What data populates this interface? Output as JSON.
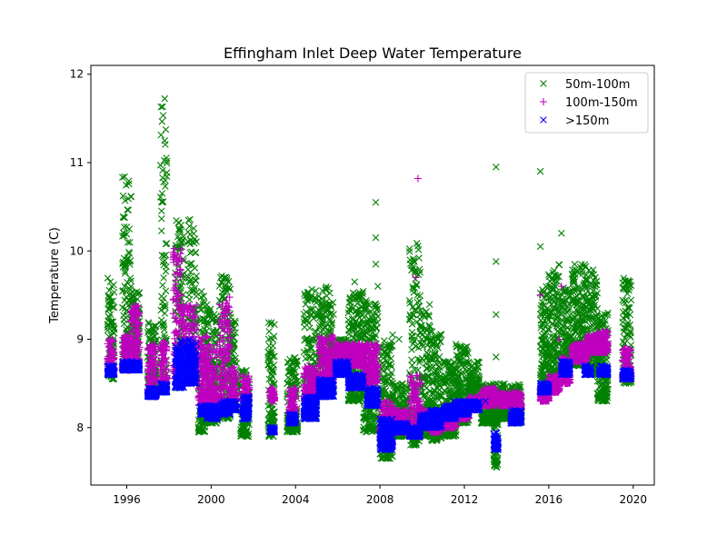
{
  "chart_data": {
    "type": "scatter",
    "title": "Effingham Inlet Deep Water Temperature",
    "xlabel": "",
    "ylabel": "Temperature (C)",
    "xlim": [
      1994.3,
      2021.0
    ],
    "ylim": [
      7.35,
      12.1
    ],
    "x_ticks": [
      1996,
      2000,
      2004,
      2008,
      2012,
      2016,
      2020
    ],
    "y_ticks": [
      8,
      9,
      10,
      11,
      12
    ],
    "legend_position": "top-right",
    "grid": false,
    "series": [
      {
        "name": "50m-100m",
        "marker": "x",
        "color": "#008000",
        "segments": [
          [
            1995.1,
            1995.4,
            8.55,
            9.7
          ],
          [
            1995.8,
            1996.2,
            8.65,
            10.85
          ],
          [
            1996.2,
            1996.6,
            8.7,
            9.55
          ],
          [
            1997.0,
            1997.4,
            8.35,
            9.2
          ],
          [
            1997.6,
            1997.9,
            8.45,
            11.85
          ],
          [
            1998.3,
            1998.7,
            8.45,
            10.35
          ],
          [
            1998.9,
            1999.3,
            8.5,
            10.45
          ],
          [
            1999.4,
            1999.7,
            7.95,
            9.6
          ],
          [
            1999.7,
            2000.3,
            8.05,
            9.4
          ],
          [
            2000.4,
            2000.9,
            8.1,
            9.8
          ],
          [
            2000.9,
            2001.2,
            8.2,
            9.3
          ],
          [
            2001.4,
            2001.8,
            7.9,
            8.65
          ],
          [
            2002.7,
            2003.0,
            7.9,
            9.2
          ],
          [
            2003.6,
            2004.1,
            7.95,
            8.8
          ],
          [
            2004.4,
            2005.0,
            8.1,
            9.6
          ],
          [
            2005.1,
            2005.8,
            8.4,
            9.6
          ],
          [
            2005.9,
            2006.5,
            8.6,
            9.0
          ],
          [
            2006.5,
            2007.2,
            8.3,
            9.55
          ],
          [
            2007.2,
            2007.9,
            7.95,
            9.45
          ],
          [
            2008.0,
            2008.6,
            7.65,
            9.0
          ],
          [
            2008.6,
            2009.3,
            7.9,
            8.5
          ],
          [
            2009.4,
            2009.9,
            7.8,
            10.1
          ],
          [
            2009.9,
            2010.4,
            7.9,
            9.4
          ],
          [
            2010.4,
            2010.9,
            7.85,
            9.1
          ],
          [
            2011.0,
            2011.6,
            7.9,
            8.75
          ],
          [
            2011.6,
            2012.2,
            8.05,
            8.95
          ],
          [
            2012.2,
            2012.7,
            8.2,
            8.75
          ],
          [
            2012.8,
            2013.5,
            8.05,
            8.5
          ],
          [
            2013.4,
            2013.6,
            7.55,
            8.4
          ],
          [
            2013.6,
            2014.1,
            8.1,
            8.5
          ],
          [
            2014.2,
            2014.7,
            8.05,
            8.5
          ],
          [
            2015.6,
            2016.0,
            8.4,
            9.6
          ],
          [
            2016.0,
            2016.5,
            8.6,
            9.85
          ],
          [
            2016.6,
            2017.0,
            8.65,
            9.6
          ],
          [
            2017.1,
            2017.8,
            8.7,
            9.85
          ],
          [
            2017.8,
            2018.3,
            8.6,
            9.8
          ],
          [
            2018.3,
            2018.8,
            8.3,
            9.3
          ],
          [
            2019.5,
            2019.9,
            8.5,
            9.7
          ]
        ],
        "outliers": [
          [
            2007.8,
            10.55
          ],
          [
            2007.8,
            10.15
          ],
          [
            2007.8,
            9.85
          ],
          [
            2007.9,
            9.6
          ],
          [
            2013.5,
            10.95
          ],
          [
            2013.5,
            9.88
          ],
          [
            2013.5,
            9.28
          ],
          [
            2013.5,
            8.8
          ],
          [
            2015.6,
            10.9
          ],
          [
            2015.6,
            10.05
          ],
          [
            2016.6,
            10.2
          ],
          [
            2006.8,
            9.65
          ],
          [
            2008.6,
            9.05
          ],
          [
            2008.9,
            9.0
          ]
        ]
      },
      {
        "name": "100m-150m",
        "marker": "+",
        "color": "#bf00bf",
        "segments": [
          [
            1995.1,
            1995.4,
            8.65,
            9.0
          ],
          [
            1995.8,
            1996.2,
            8.65,
            9.05
          ],
          [
            1996.2,
            1996.6,
            8.7,
            9.4
          ],
          [
            1997.0,
            1997.4,
            8.35,
            8.95
          ],
          [
            1997.6,
            1997.9,
            8.5,
            9.0
          ],
          [
            1998.2,
            1998.6,
            8.55,
            10.05
          ],
          [
            1998.6,
            1999.3,
            8.5,
            9.4
          ],
          [
            1999.4,
            1999.8,
            8.25,
            9.05
          ],
          [
            1999.8,
            2000.3,
            8.25,
            8.95
          ],
          [
            2000.4,
            2000.9,
            8.2,
            9.5
          ],
          [
            2000.9,
            2001.2,
            8.3,
            8.7
          ],
          [
            2001.5,
            2001.8,
            8.3,
            8.6
          ],
          [
            2002.8,
            2003.0,
            8.3,
            8.45
          ],
          [
            2003.7,
            2004.0,
            8.15,
            8.45
          ],
          [
            2004.4,
            2005.0,
            8.3,
            8.7
          ],
          [
            2005.1,
            2005.8,
            8.45,
            9.05
          ],
          [
            2005.9,
            2006.5,
            8.7,
            8.95
          ],
          [
            2006.5,
            2007.2,
            8.7,
            8.95
          ],
          [
            2007.2,
            2007.9,
            8.5,
            8.95
          ],
          [
            2008.0,
            2008.6,
            7.8,
            8.3
          ],
          [
            2008.6,
            2009.3,
            7.95,
            8.2
          ],
          [
            2009.4,
            2009.9,
            7.9,
            8.6
          ],
          [
            2009.9,
            2010.4,
            8.0,
            8.2
          ],
          [
            2010.4,
            2010.9,
            7.95,
            8.15
          ],
          [
            2011.0,
            2011.6,
            8.0,
            8.25
          ],
          [
            2011.6,
            2012.2,
            8.1,
            8.3
          ],
          [
            2012.2,
            2012.7,
            8.2,
            8.35
          ],
          [
            2012.8,
            2013.5,
            8.25,
            8.45
          ],
          [
            2013.6,
            2014.1,
            8.25,
            8.4
          ],
          [
            2014.2,
            2014.7,
            8.2,
            8.4
          ],
          [
            2015.6,
            2016.0,
            8.3,
            8.45
          ],
          [
            2016.0,
            2016.5,
            8.4,
            8.6
          ],
          [
            2016.6,
            2017.0,
            8.5,
            8.8
          ],
          [
            2017.1,
            2017.8,
            8.75,
            8.95
          ],
          [
            2017.8,
            2018.3,
            8.85,
            9.05
          ],
          [
            2018.3,
            2018.8,
            8.85,
            9.1
          ],
          [
            2019.5,
            2019.9,
            8.55,
            8.9
          ]
        ],
        "outliers": [
          [
            2009.8,
            10.82
          ],
          [
            2009.7,
            9.7
          ],
          [
            2015.6,
            9.5
          ],
          [
            2016.6,
            9.6
          ],
          [
            1998.4,
            8.65
          ],
          [
            1996.2,
            9.3
          ],
          [
            2007.9,
            8.65
          ],
          [
            2016.5,
            9.0
          ]
        ]
      },
      {
        "name": ">150m",
        "marker": "x",
        "color": "#0000ff",
        "segments": [
          [
            1995.1,
            1995.4,
            8.6,
            8.7
          ],
          [
            1995.8,
            1996.2,
            8.65,
            8.75
          ],
          [
            1996.2,
            1996.6,
            8.65,
            8.75
          ],
          [
            1997.0,
            1997.4,
            8.35,
            8.45
          ],
          [
            1997.6,
            1997.9,
            8.4,
            8.5
          ],
          [
            1998.3,
            1998.7,
            8.45,
            9.0
          ],
          [
            1998.7,
            1999.3,
            8.5,
            9.0
          ],
          [
            1999.5,
            1999.8,
            8.15,
            8.25
          ],
          [
            1999.8,
            2000.3,
            8.1,
            8.25
          ],
          [
            2000.5,
            2000.9,
            8.15,
            8.3
          ],
          [
            2000.9,
            2001.2,
            8.2,
            8.3
          ],
          [
            2001.5,
            2001.8,
            8.1,
            8.35
          ],
          [
            2002.8,
            2003.0,
            7.95,
            8.0
          ],
          [
            2003.7,
            2004.0,
            8.05,
            8.15
          ],
          [
            2004.4,
            2005.0,
            8.1,
            8.35
          ],
          [
            2005.1,
            2005.8,
            8.35,
            8.55
          ],
          [
            2005.9,
            2006.5,
            8.6,
            8.75
          ],
          [
            2006.5,
            2007.2,
            8.45,
            8.6
          ],
          [
            2007.4,
            2007.9,
            8.25,
            8.45
          ],
          [
            2008.0,
            2008.6,
            7.75,
            8.1
          ],
          [
            2008.6,
            2009.3,
            7.95,
            8.05
          ],
          [
            2009.4,
            2009.9,
            7.9,
            8.0
          ],
          [
            2009.9,
            2010.4,
            8.0,
            8.15
          ],
          [
            2010.4,
            2010.9,
            8.0,
            8.2
          ],
          [
            2011.0,
            2011.6,
            8.1,
            8.25
          ],
          [
            2011.6,
            2012.2,
            8.15,
            8.3
          ],
          [
            2012.2,
            2012.7,
            8.2,
            8.3
          ],
          [
            2013.4,
            2013.6,
            7.75,
            7.95
          ],
          [
            2014.2,
            2014.7,
            8.05,
            8.2
          ],
          [
            2015.6,
            2016.0,
            8.4,
            8.5
          ],
          [
            2016.6,
            2017.0,
            8.6,
            8.75
          ],
          [
            2017.7,
            2018.0,
            8.6,
            8.7
          ],
          [
            2018.4,
            2018.8,
            8.6,
            8.7
          ],
          [
            2019.5,
            2019.9,
            8.55,
            8.65
          ]
        ],
        "outliers": [
          [
            2011.5,
            8.3
          ],
          [
            2013.0,
            8.3
          ]
        ]
      }
    ]
  }
}
